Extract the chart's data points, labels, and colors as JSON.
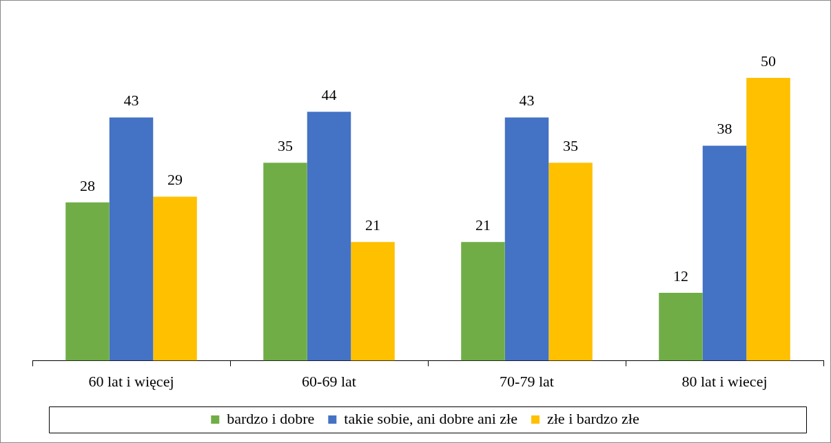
{
  "chart_data": {
    "type": "bar",
    "categories": [
      "60 lat i więcej",
      "60-69 lat",
      "70-79 lat",
      "80 lat i wiecej"
    ],
    "series": [
      {
        "name": "bardzo i dobre",
        "color": "#70ad47",
        "values": [
          28,
          35,
          21,
          12
        ]
      },
      {
        "name": "takie sobie, ani dobre ani złe",
        "color": "#4472c4",
        "values": [
          43,
          44,
          43,
          38
        ]
      },
      {
        "name": "złe i bardzo złe",
        "color": "#ffc000",
        "values": [
          29,
          21,
          35,
          50
        ]
      }
    ],
    "relative": false,
    "data_labels": true,
    "legend": "bottom",
    "grid": false
  }
}
